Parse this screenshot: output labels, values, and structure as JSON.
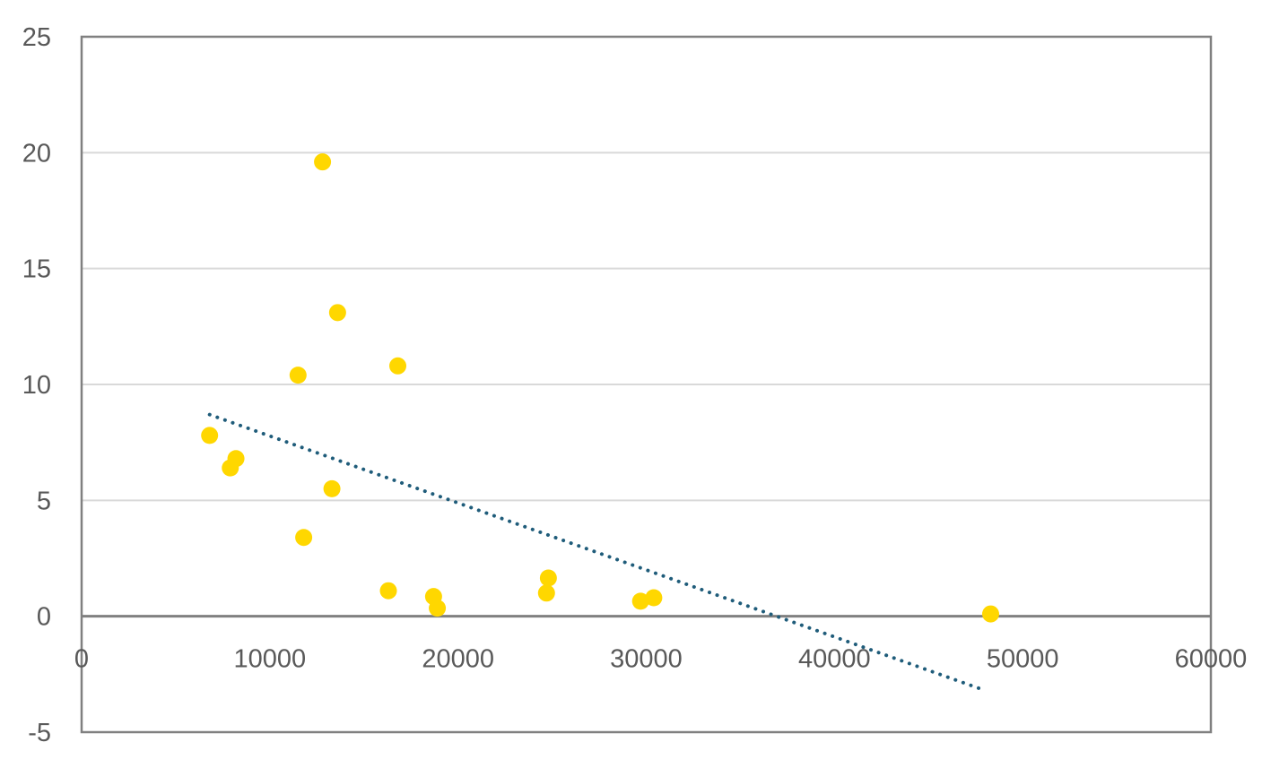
{
  "chart_data": {
    "type": "scatter",
    "title": "",
    "xlabel": "",
    "ylabel": "",
    "xlim": [
      0,
      60000
    ],
    "ylim": [
      -5,
      25
    ],
    "x_ticks": [
      "0",
      "10000",
      "20000",
      "30000",
      "40000",
      "50000",
      "60000"
    ],
    "y_ticks": [
      "-5",
      "0",
      "5",
      "10",
      "15",
      "20",
      "25"
    ],
    "grid": "horizontal",
    "legend": "none",
    "series": [
      {
        "color": "#FFD700",
        "points": [
          {
            "x": 6800,
            "y": 7.8
          },
          {
            "x": 7900,
            "y": 6.4
          },
          {
            "x": 8200,
            "y": 6.8
          },
          {
            "x": 11500,
            "y": 10.4
          },
          {
            "x": 11800,
            "y": 3.4
          },
          {
            "x": 12800,
            "y": 19.6
          },
          {
            "x": 13300,
            "y": 5.5
          },
          {
            "x": 13600,
            "y": 13.1
          },
          {
            "x": 16300,
            "y": 1.1
          },
          {
            "x": 16800,
            "y": 10.8
          },
          {
            "x": 18700,
            "y": 0.85
          },
          {
            "x": 18900,
            "y": 0.35
          },
          {
            "x": 24700,
            "y": 1.0
          },
          {
            "x": 24800,
            "y": 1.65
          },
          {
            "x": 29700,
            "y": 0.65
          },
          {
            "x": 30400,
            "y": 0.8
          },
          {
            "x": 48300,
            "y": 0.1
          }
        ]
      }
    ],
    "trendline": {
      "style": "dotted",
      "color": "#1F5C7A",
      "start": {
        "x": 6800,
        "y": 8.7
      },
      "end": {
        "x": 48000,
        "y": -3.2
      }
    },
    "colors": {
      "axis": "#808080",
      "zero_line": "#808080",
      "grid": "#D9D9D9",
      "tick_text": "#595959"
    }
  }
}
